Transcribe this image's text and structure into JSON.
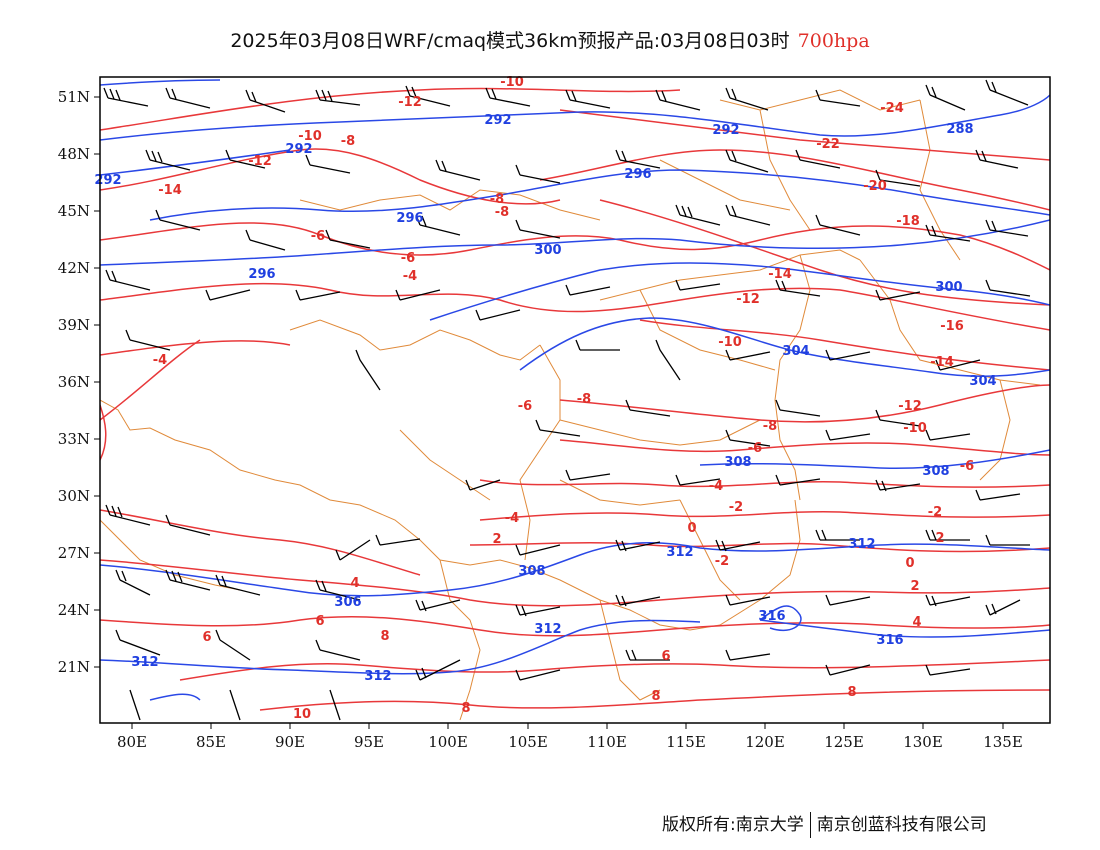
{
  "title": {
    "text": "2025年03月08日WRF/cmaq模式36km预报产品:03月08日03时",
    "level": "700hpa"
  },
  "axes": {
    "lat_labels": [
      "51N",
      "48N",
      "45N",
      "42N",
      "39N",
      "36N",
      "33N",
      "30N",
      "27N",
      "24N",
      "21N"
    ],
    "lon_labels": [
      "80E",
      "85E",
      "90E",
      "95E",
      "100E",
      "105E",
      "110E",
      "115E",
      "120E",
      "125E",
      "130E",
      "135E"
    ]
  },
  "contour_labels": {
    "temperature": [
      "-10",
      "-12",
      "-10",
      "-8",
      "-12",
      "-14",
      "-6",
      "-8",
      "-6",
      "-4",
      "-8",
      "-6",
      "-4",
      "-24",
      "-22",
      "-20",
      "-18",
      "-14",
      "-12",
      "-10",
      "-16",
      "-14",
      "-12",
      "-10",
      "-8",
      "-6",
      "-6",
      "-4",
      "-2",
      "0",
      "-2",
      "-8",
      "2",
      "-4",
      "-2",
      "2",
      "0",
      "2",
      "4",
      "6",
      "6",
      "4",
      "6",
      "8",
      "10",
      "8",
      "8",
      "8"
    ],
    "geopotential": [
      "292",
      "292",
      "292",
      "288",
      "296",
      "292",
      "296",
      "300",
      "296",
      "300",
      "304",
      "304",
      "308",
      "308",
      "306",
      "308",
      "312",
      "312",
      "312",
      "316",
      "316",
      "312",
      "312"
    ]
  },
  "colors": {
    "temperature_line": "#e8383a",
    "geopotential_line": "#2a48e6",
    "border": "#e08a3a",
    "wind_barb": "#000000"
  },
  "footer": {
    "left": "版权所有:南京大学",
    "right": "南京创蓝科技有限公司"
  }
}
